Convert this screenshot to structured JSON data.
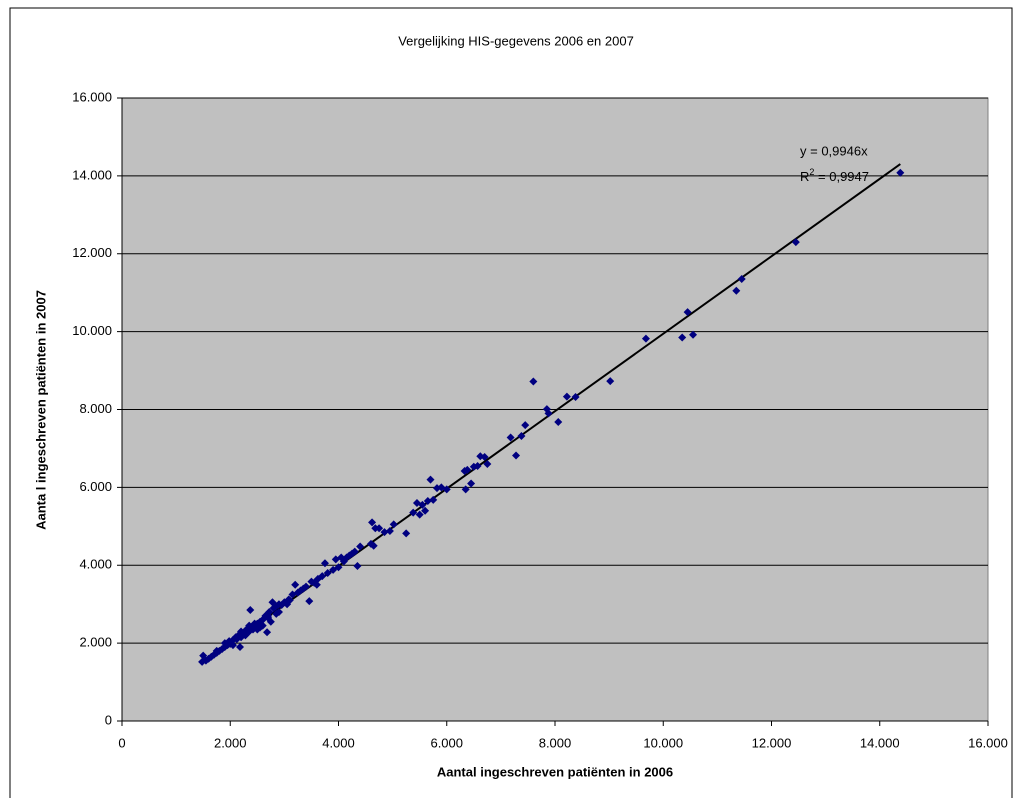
{
  "chart_data": {
    "type": "scatter",
    "title": "Vergelijking HIS-gegevens 2006 en 2007",
    "x_label": "Aantal ingeschreven patiënten in 2006",
    "y_label": "Aanta l ingeschreven patiënten in 2007",
    "color": "#000080",
    "background": "#c0c0c0",
    "grid": true,
    "xlim": [
      0,
      16000
    ],
    "ylim": [
      0,
      16000
    ],
    "xticks": [
      0,
      {
        "value": 2000,
        "label": "2.000"
      },
      {
        "value": 4000,
        "label": "4.000"
      },
      {
        "value": 6000,
        "label": "6.000"
      },
      {
        "value": 8000,
        "label": "8.000"
      },
      {
        "value": 10000,
        "label": "10.000"
      },
      {
        "value": 12000,
        "label": "12.000"
      },
      {
        "value": 14000,
        "label": "14.000"
      },
      {
        "value": 16000,
        "label": "16.000"
      }
    ],
    "yticks": [
      0,
      {
        "value": 2000,
        "label": "2.000"
      },
      {
        "value": 4000,
        "label": "4.000"
      },
      {
        "value": 6000,
        "label": "6.000"
      },
      {
        "value": 8000,
        "label": "8.000"
      },
      {
        "value": 10000,
        "label": "10.000"
      },
      {
        "value": 12000,
        "label": "12.000"
      },
      {
        "value": 14000,
        "label": "14.000"
      },
      {
        "value": 16000,
        "label": "16.000"
      }
    ],
    "trendline": {
      "slope": 0.9946,
      "equation": "y = 0,9946x",
      "r2_label": [
        "R",
        "2",
        " = 0,9947"
      ]
    },
    "x": [
      14380,
      12450,
      11450,
      11350,
      10550,
      10450,
      10350,
      9680,
      9020,
      8380,
      8220,
      8060,
      7850,
      7880,
      7600,
      7450,
      7380,
      7280,
      7180,
      6750,
      6700,
      6620,
      6570,
      6500,
      6450,
      6350,
      6330,
      6380,
      6000,
      5900,
      5820,
      5750,
      5700,
      5650,
      5600,
      5550,
      5500,
      5450,
      5380,
      5250,
      5020,
      4950,
      4850,
      4750,
      4680,
      4620,
      4600,
      4650,
      4400,
      4350,
      4300,
      4250,
      4150,
      4100,
      4050,
      4000,
      3950,
      3900,
      3800,
      3750,
      3700,
      3620,
      3550,
      3500,
      3460,
      3400,
      3300,
      3250,
      3200,
      3150,
      3080,
      3000,
      2950,
      2900,
      2850,
      2800,
      2780,
      2750,
      2720,
      2700,
      2680,
      2650,
      2600,
      2550,
      2500,
      2450,
      2420,
      2400,
      2370,
      2350,
      2300,
      2280,
      2250,
      2200,
      2180,
      2150,
      2120,
      2100,
      2050,
      2020,
      2000,
      1980,
      1950,
      1900,
      1850,
      1800,
      1750,
      1700,
      1650,
      1600,
      1550,
      1500,
      1480,
      2600,
      2900,
      3100,
      2700,
      2350,
      2450,
      2550,
      2200,
      2050,
      1900,
      1750,
      3350,
      3600,
      4200,
      2850,
      3050,
      2500
    ],
    "values": [
      14080,
      12300,
      11350,
      11050,
      9920,
      10500,
      9850,
      9820,
      8730,
      8320,
      8330,
      7680,
      8010,
      7900,
      8720,
      7600,
      7320,
      6820,
      7280,
      6600,
      6780,
      6800,
      6550,
      6530,
      6100,
      5950,
      6420,
      6450,
      5950,
      6000,
      5980,
      5680,
      6200,
      5650,
      5400,
      5550,
      5300,
      5600,
      5350,
      4820,
      5050,
      4880,
      4850,
      4950,
      4950,
      5100,
      4550,
      4500,
      4480,
      3980,
      4350,
      4300,
      4200,
      4100,
      4200,
      3950,
      4150,
      3880,
      3800,
      4050,
      3720,
      3650,
      3550,
      3580,
      3080,
      3450,
      3350,
      3300,
      3500,
      3250,
      3120,
      3050,
      2980,
      3000,
      2950,
      2900,
      3050,
      2550,
      2800,
      2650,
      2280,
      2700,
      2600,
      2550,
      2500,
      2450,
      2350,
      2400,
      2850,
      2300,
      2350,
      2200,
      2250,
      2150,
      1900,
      2200,
      2100,
      2150,
      2080,
      2000,
      1980,
      2050,
      1950,
      1900,
      1850,
      1800,
      1750,
      1700,
      1650,
      1600,
      1550,
      1680,
      1520,
      2450,
      2800,
      3100,
      2700,
      2450,
      2500,
      2400,
      2300,
      1950,
      2000,
      1800,
      3400,
      3500,
      4250,
      2750,
      3000,
      2350
    ]
  }
}
